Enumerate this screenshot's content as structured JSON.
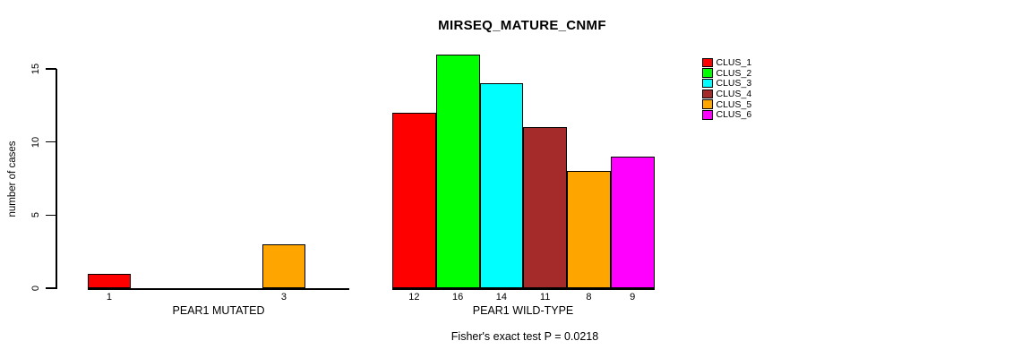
{
  "chart_data": {
    "type": "bar",
    "title": "MIRSEQ_MATURE_CNMF",
    "ylabel": "number of cases",
    "ylim": [
      0,
      15
    ],
    "yticks": [
      0,
      5,
      10,
      15
    ],
    "grid": false,
    "legend_position": "top-right",
    "categories": [
      "PEAR1 MUTATED",
      "PEAR1 WILD-TYPE"
    ],
    "series": [
      {
        "name": "CLUS_1",
        "color": "#FF0000",
        "values": [
          1,
          12
        ]
      },
      {
        "name": "CLUS_2",
        "color": "#00FF00",
        "values": [
          0,
          16
        ]
      },
      {
        "name": "CLUS_3",
        "color": "#00FFFF",
        "values": [
          0,
          14
        ]
      },
      {
        "name": "CLUS_4",
        "color": "#A52A2A",
        "values": [
          0,
          11
        ]
      },
      {
        "name": "CLUS_5",
        "color": "#FFA500",
        "values": [
          3,
          8
        ]
      },
      {
        "name": "CLUS_6",
        "color": "#FF00FF",
        "values": [
          0,
          9
        ]
      }
    ],
    "bar_value_labels": {
      "PEAR1 MUTATED": [
        1,
        null,
        null,
        null,
        3,
        null
      ],
      "PEAR1 WILD-TYPE": [
        12,
        16,
        14,
        11,
        8,
        9
      ]
    },
    "annotation": "Fisher's exact test P = 0.0218",
    "axis_color": "#000000",
    "background_color": "#FFFFFF"
  }
}
